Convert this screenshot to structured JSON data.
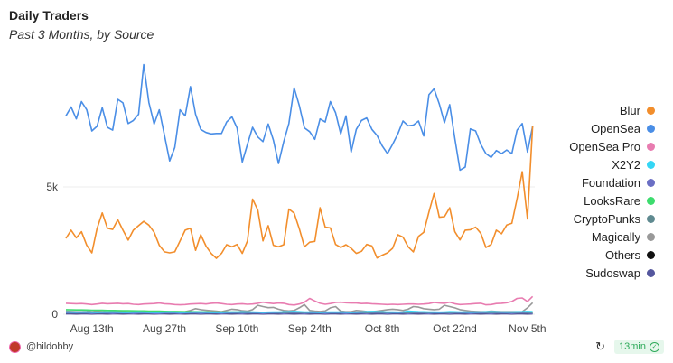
{
  "chart_data": {
    "type": "line",
    "title": "Daily Traders",
    "subtitle": "Past 3 Months, by Source",
    "xlabel": "",
    "ylabel": "",
    "ylim": [
      0,
      10000
    ],
    "y_ticks": [
      {
        "value": 0,
        "label": "0"
      },
      {
        "value": 5000,
        "label": "5k"
      }
    ],
    "x_start": "Aug 8",
    "x_ticks": [
      {
        "index": 5,
        "label": "Aug 13th"
      },
      {
        "index": 19,
        "label": "Aug 27th"
      },
      {
        "index": 33,
        "label": "Sep 10th"
      },
      {
        "index": 47,
        "label": "Sep 24th"
      },
      {
        "index": 61,
        "label": "Oct 8th"
      },
      {
        "index": 75,
        "label": "Oct 22nd"
      },
      {
        "index": 89,
        "label": "Nov 5th"
      }
    ],
    "legend_position": "right",
    "grid": true,
    "series": [
      {
        "name": "Blur",
        "color": "#f28e2c",
        "values": [
          2980,
          3300,
          3000,
          3240,
          2710,
          2410,
          3360,
          3980,
          3380,
          3330,
          3710,
          3300,
          2910,
          3300,
          3480,
          3650,
          3500,
          3220,
          2710,
          2450,
          2410,
          2450,
          2880,
          3300,
          3380,
          2510,
          3120,
          2680,
          2390,
          2200,
          2390,
          2730,
          2650,
          2740,
          2390,
          2880,
          4520,
          4090,
          2880,
          3480,
          2710,
          2650,
          2730,
          4130,
          3970,
          3360,
          2650,
          2830,
          2860,
          4180,
          3420,
          3390,
          2740,
          2620,
          2730,
          2590,
          2390,
          2470,
          2740,
          2680,
          2210,
          2320,
          2410,
          2590,
          3120,
          3030,
          2650,
          2450,
          3060,
          3220,
          4010,
          4740,
          3810,
          3830,
          4180,
          3240,
          2920,
          3300,
          3320,
          3420,
          3180,
          2620,
          2740,
          3300,
          3160,
          3500,
          3570,
          4540,
          5600,
          3740,
          7380
        ]
      },
      {
        "name": "OpenSea",
        "color": "#4a8ee6",
        "values": [
          7790,
          8140,
          7670,
          8350,
          8030,
          7200,
          7380,
          8110,
          7340,
          7230,
          8440,
          8300,
          7490,
          7610,
          7850,
          9800,
          8320,
          7470,
          8030,
          7020,
          6020,
          6550,
          8030,
          7790,
          8940,
          7850,
          7260,
          7140,
          7080,
          7100,
          7100,
          7550,
          7750,
          7320,
          5980,
          6670,
          7340,
          6960,
          6780,
          7470,
          6840,
          5920,
          6780,
          7490,
          8890,
          8200,
          7320,
          7170,
          6870,
          7670,
          7550,
          8350,
          7910,
          7080,
          7790,
          6370,
          7260,
          7610,
          7710,
          7260,
          7020,
          6610,
          6310,
          6670,
          7080,
          7590,
          7400,
          7430,
          7590,
          7000,
          8620,
          8850,
          8260,
          7520,
          8230,
          6900,
          5660,
          5780,
          7280,
          7200,
          6670,
          6310,
          6160,
          6430,
          6310,
          6450,
          6310,
          7230,
          7490,
          6370,
          7380
        ]
      },
      {
        "name": "OpenSea Pro",
        "color": "#e87cb0",
        "values": [
          430,
          420,
          410,
          420,
          400,
          380,
          400,
          430,
          410,
          420,
          430,
          410,
          420,
          390,
          380,
          400,
          410,
          420,
          440,
          410,
          400,
          380,
          370,
          380,
          400,
          410,
          420,
          400,
          430,
          440,
          420,
          390,
          380,
          400,
          410,
          390,
          400,
          430,
          470,
          440,
          420,
          440,
          430,
          380,
          360,
          400,
          470,
          620,
          520,
          430,
          390,
          420,
          460,
          470,
          450,
          440,
          440,
          420,
          430,
          410,
          400,
          390,
          380,
          390,
          380,
          390,
          400,
          400,
          390,
          400,
          420,
          460,
          440,
          430,
          470,
          410,
          380,
          390,
          400,
          420,
          430,
          370,
          380,
          420,
          430,
          450,
          500,
          620,
          640,
          500,
          700
        ]
      },
      {
        "name": "X2Y2",
        "color": "#35d6f5",
        "values": [
          90,
          85,
          80,
          90,
          85,
          80,
          75,
          80,
          85,
          90,
          80,
          75,
          70,
          80,
          85,
          80,
          75,
          70,
          75,
          80,
          85,
          80,
          75,
          70,
          80,
          90,
          85,
          80,
          75,
          70,
          75,
          80,
          85,
          90,
          95,
          90,
          85,
          80,
          75,
          80,
          85,
          90,
          95,
          100,
          110,
          100,
          90,
          85,
          80,
          75,
          80,
          85,
          90,
          85,
          80,
          75,
          80,
          90,
          100,
          110,
          100,
          95,
          90,
          85,
          80,
          90,
          120,
          110,
          100,
          95,
          90,
          85,
          80,
          90,
          100,
          95,
          90,
          85,
          80,
          85,
          90,
          95,
          100,
          95,
          90,
          85,
          90,
          95,
          100,
          110,
          100
        ]
      },
      {
        "name": "Foundation",
        "color": "#6b6fc4",
        "values": [
          40,
          40,
          35,
          40,
          35,
          30,
          35,
          40,
          35,
          30,
          35,
          40,
          35,
          30,
          35,
          40,
          35,
          30,
          30,
          35,
          40,
          35,
          30,
          35,
          40,
          35,
          30,
          35,
          40,
          35,
          30,
          35,
          40,
          35,
          30,
          35,
          40,
          35,
          30,
          35,
          40,
          35,
          30,
          35,
          40,
          35,
          30,
          35,
          40,
          35,
          30,
          35,
          40,
          35,
          30,
          35,
          40,
          35,
          30,
          35,
          40,
          35,
          30,
          35,
          40,
          35,
          30,
          35,
          40,
          35,
          30,
          35,
          40,
          35,
          30,
          35,
          40,
          35,
          30,
          35,
          40,
          35,
          30,
          35,
          40,
          35,
          30,
          35,
          40,
          35,
          30
        ]
      },
      {
        "name": "LooksRare",
        "color": "#3ddc6e",
        "values": [
          180,
          175,
          170,
          170,
          165,
          160,
          160,
          155,
          150,
          150,
          145,
          140,
          140,
          135,
          130,
          130,
          125,
          120,
          120,
          115,
          110,
          110,
          105,
          100,
          100,
          100,
          95,
          95,
          90,
          90,
          90,
          85,
          85,
          85,
          80,
          80,
          80,
          75,
          75,
          75,
          70,
          70,
          70,
          70,
          65,
          65,
          65,
          65,
          60,
          60,
          60,
          60,
          60,
          55,
          55,
          55,
          55,
          55,
          50,
          50,
          50,
          50,
          50,
          50,
          50,
          50,
          50,
          50,
          50,
          50,
          50,
          50,
          50,
          50,
          50,
          50,
          50,
          50,
          50,
          50,
          50,
          50,
          50,
          50,
          50,
          50,
          50,
          50,
          50,
          50,
          50
        ]
      },
      {
        "name": "CryptoPunks",
        "color": "#5f8a90",
        "values": [
          60,
          60,
          55,
          60,
          65,
          60,
          55,
          60,
          60,
          55,
          60,
          65,
          60,
          55,
          60,
          60,
          55,
          60,
          65,
          60,
          55,
          60,
          60,
          55,
          60,
          65,
          60,
          55,
          60,
          60,
          55,
          60,
          65,
          60,
          55,
          60,
          60,
          55,
          60,
          65,
          60,
          55,
          60,
          60,
          55,
          60,
          65,
          60,
          55,
          60,
          60,
          55,
          60,
          65,
          60,
          55,
          60,
          60,
          55,
          60,
          65,
          60,
          55,
          60,
          60,
          55,
          60,
          65,
          60,
          55,
          60,
          60,
          55,
          60,
          65,
          60,
          55,
          60,
          60,
          55,
          60,
          65,
          60,
          55,
          60,
          60,
          55,
          60,
          65,
          60,
          55
        ]
      },
      {
        "name": "Magically",
        "color": "#999999",
        "values": [
          120,
          110,
          100,
          100,
          110,
          150,
          120,
          100,
          90,
          100,
          110,
          100,
          90,
          80,
          90,
          100,
          90,
          80,
          90,
          100,
          90,
          80,
          90,
          100,
          150,
          220,
          180,
          160,
          140,
          120,
          100,
          150,
          200,
          180,
          140,
          120,
          180,
          350,
          300,
          260,
          270,
          200,
          150,
          130,
          150,
          250,
          380,
          150,
          120,
          110,
          130,
          250,
          300,
          120,
          100,
          100,
          150,
          130,
          110,
          100,
          120,
          150,
          180,
          200,
          180,
          150,
          200,
          300,
          280,
          220,
          200,
          180,
          200,
          350,
          300,
          250,
          180,
          150,
          120,
          110,
          100,
          100,
          120,
          110,
          100,
          100,
          100,
          100,
          100,
          250,
          450
        ]
      },
      {
        "name": "Others",
        "color": "#111111",
        "values": [
          30,
          30,
          25,
          30,
          30,
          25,
          30,
          30,
          25,
          30,
          30,
          25,
          30,
          30,
          25,
          30,
          30,
          25,
          30,
          30,
          25,
          30,
          30,
          25,
          30,
          30,
          25,
          30,
          30,
          25,
          30,
          30,
          25,
          30,
          30,
          25,
          30,
          30,
          25,
          30,
          30,
          25,
          30,
          30,
          25,
          30,
          30,
          25,
          30,
          30,
          25,
          30,
          30,
          25,
          30,
          30,
          25,
          30,
          30,
          25,
          30,
          30,
          25,
          30,
          30,
          25,
          30,
          30,
          25,
          30,
          30,
          25,
          30,
          30,
          25,
          30,
          30,
          25,
          30,
          30,
          25,
          30,
          30,
          25,
          30,
          30,
          25,
          30,
          30,
          25,
          30
        ]
      },
      {
        "name": "Sudoswap",
        "color": "#55579e",
        "values": [
          15,
          15,
          10,
          15,
          15,
          10,
          15,
          15,
          10,
          15,
          15,
          10,
          15,
          15,
          10,
          15,
          15,
          10,
          15,
          15,
          10,
          15,
          15,
          10,
          15,
          15,
          10,
          15,
          15,
          10,
          15,
          15,
          10,
          15,
          15,
          10,
          15,
          15,
          10,
          15,
          15,
          10,
          15,
          15,
          10,
          15,
          15,
          10,
          15,
          15,
          10,
          15,
          15,
          10,
          15,
          15,
          10,
          15,
          15,
          10,
          15,
          15,
          10,
          15,
          15,
          10,
          15,
          15,
          10,
          15,
          15,
          10,
          15,
          15,
          10,
          15,
          15,
          10,
          15,
          15,
          10,
          15,
          15,
          10,
          15,
          15,
          10,
          15,
          15,
          10,
          15
        ]
      }
    ]
  },
  "footer": {
    "author": "@hildobby",
    "refresh_icon": "refresh-icon",
    "freshness": "13min"
  }
}
